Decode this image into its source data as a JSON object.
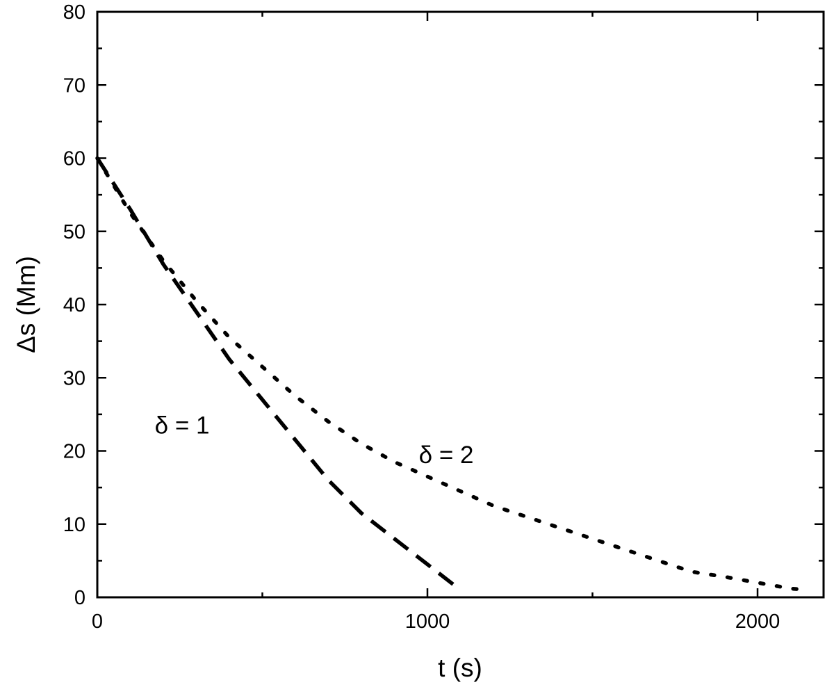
{
  "chart_data": {
    "type": "line",
    "xlabel": "t (s)",
    "ylabel": "Δs (Mm)",
    "xlim": [
      0,
      2200
    ],
    "ylim": [
      0,
      80
    ],
    "x_ticks": [
      0,
      1000,
      2000
    ],
    "x_tick_labels": [
      "0",
      "1000",
      "2000"
    ],
    "y_ticks": [
      0,
      10,
      20,
      30,
      40,
      50,
      60,
      70,
      80
    ],
    "y_tick_labels": [
      "0",
      "10",
      "20",
      "30",
      "40",
      "50",
      "60",
      "70",
      "80"
    ],
    "grid": false,
    "series": [
      {
        "name": "δ = 1",
        "line_style": "dashed",
        "x": [
          0,
          100,
          200,
          300,
          400,
          500,
          600,
          700,
          800,
          900,
          1000,
          1100
        ],
        "y": [
          60,
          53,
          45.5,
          39,
          32.5,
          27,
          21.5,
          16,
          11.5,
          8,
          4.5,
          1
        ]
      },
      {
        "name": "δ = 2",
        "line_style": "dotted",
        "x": [
          0,
          100,
          200,
          300,
          400,
          500,
          600,
          700,
          800,
          900,
          1000,
          1100,
          1200,
          1300,
          1400,
          1500,
          1600,
          1700,
          1800,
          1900,
          2000,
          2100,
          2150
        ],
        "y": [
          60,
          52.5,
          46,
          40.5,
          35.5,
          31.5,
          27.5,
          24,
          21,
          18.5,
          16.5,
          14.5,
          12.5,
          11,
          9.5,
          8,
          6.5,
          5,
          3.5,
          2.8,
          2,
          1.2,
          1
        ]
      }
    ],
    "annotations": [
      {
        "text": "δ = 1",
        "x": 340,
        "y": 23.5
      },
      {
        "text": "δ = 2",
        "x": 1140,
        "y": 19.5
      }
    ]
  }
}
